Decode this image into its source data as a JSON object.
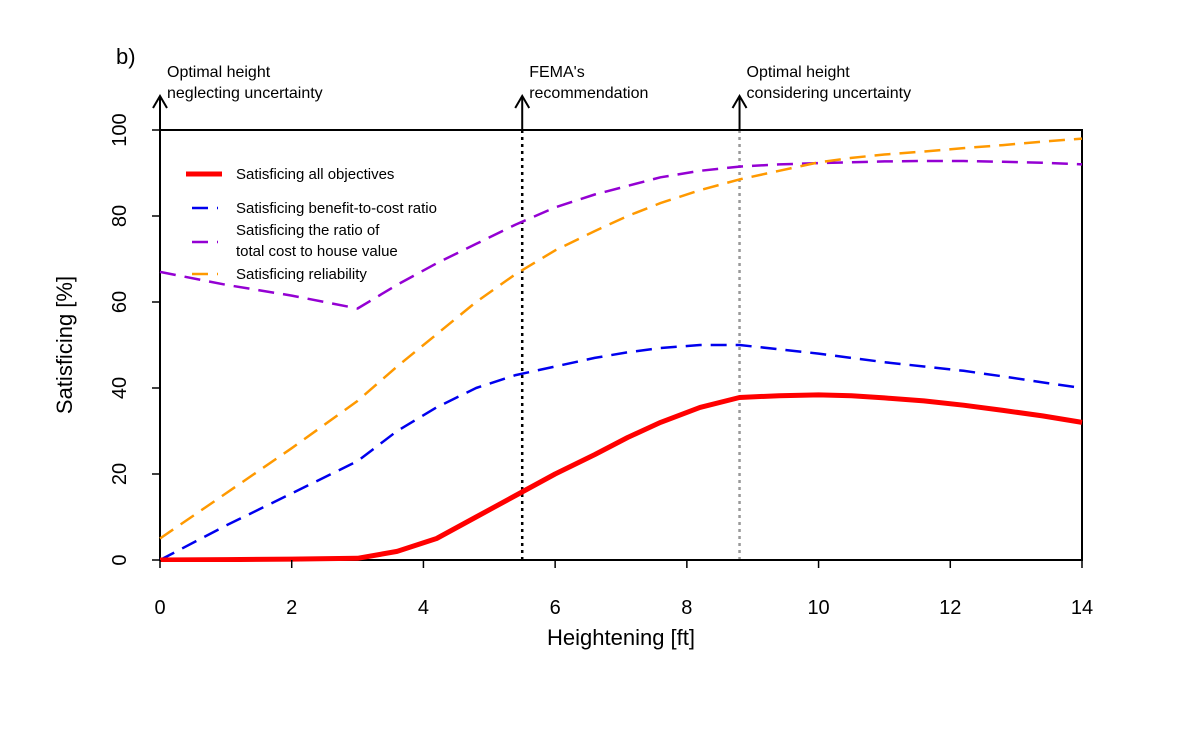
{
  "panel_label": "b)",
  "chart_data": {
    "type": "line",
    "xlabel": "Heightening [ft]",
    "ylabel": "Satisficing [%]",
    "xlim": [
      0,
      14
    ],
    "ylim": [
      0,
      100
    ],
    "xticks": [
      0,
      2,
      4,
      6,
      8,
      10,
      12,
      14
    ],
    "yticks": [
      0,
      20,
      40,
      60,
      80,
      100
    ],
    "grid": false,
    "legend_position": "top-left",
    "series": [
      {
        "name": "Satisficing all objectives",
        "color": "#ff0000",
        "style": "solid-thick",
        "x": [
          0,
          1,
          2,
          3,
          3.6,
          4.2,
          4.8,
          5.4,
          6,
          6.6,
          7.1,
          7.6,
          8.2,
          8.8,
          9.4,
          10,
          10.5,
          11,
          11.6,
          12.2,
          12.8,
          13.4,
          14
        ],
        "y": [
          0,
          0.1,
          0.2,
          0.4,
          2,
          5,
          10,
          15,
          20,
          24.5,
          28.5,
          32,
          35.5,
          37.8,
          38.2,
          38.4,
          38.2,
          37.7,
          37,
          36,
          34.8,
          33.5,
          32
        ]
      },
      {
        "name": "Satisficing benefit-to-cost ratio",
        "color": "#0000ee",
        "style": "dashed",
        "x": [
          0,
          1,
          2,
          3,
          3.6,
          4.2,
          4.8,
          5.4,
          6,
          6.6,
          7.1,
          7.6,
          8.2,
          8.8,
          9.4,
          10,
          10.5,
          11,
          11.6,
          12.2,
          12.8,
          13.4,
          14
        ],
        "y": [
          0,
          8,
          15.5,
          23,
          30,
          35.5,
          40,
          43,
          45,
          47,
          48.3,
          49.3,
          50,
          50,
          49,
          48,
          47,
          46,
          45,
          44,
          42.7,
          41.3,
          40
        ]
      },
      {
        "name": "Satisficing the ratio of total cost to house value",
        "legend_lines": [
          "Satisficing the ratio of",
          "total cost to house value"
        ],
        "color": "#9400d3",
        "style": "dashed",
        "x": [
          0,
          1,
          2,
          3,
          3.6,
          4.2,
          4.8,
          5.4,
          6,
          6.6,
          7.1,
          7.6,
          8.2,
          8.8,
          9.4,
          10,
          10.5,
          11,
          11.6,
          12.2,
          12.8,
          13.4,
          14
        ],
        "y": [
          67,
          64,
          61.5,
          58.5,
          64,
          69,
          73.5,
          78,
          82,
          85,
          87,
          89,
          90.5,
          91.5,
          92,
          92.3,
          92.5,
          92.7,
          92.8,
          92.8,
          92.6,
          92.4,
          92
        ]
      },
      {
        "name": "Satisficing reliability",
        "color": "#ff9900",
        "style": "dashed",
        "x": [
          0,
          1,
          2,
          3,
          3.6,
          4.2,
          4.8,
          5.4,
          6,
          6.6,
          7.1,
          7.6,
          8.2,
          8.8,
          9.4,
          10,
          10.5,
          11,
          11.6,
          12.2,
          12.8,
          13.4,
          14
        ],
        "y": [
          5,
          15.5,
          26,
          37,
          45,
          52.5,
          60,
          66.5,
          72,
          76.5,
          80,
          83,
          86,
          88.5,
          90.5,
          92.5,
          93.5,
          94.3,
          95,
          95.8,
          96.5,
          97.3,
          98
        ]
      }
    ],
    "annotations": [
      {
        "x": 0,
        "lines": [
          "Optimal height",
          "neglecting uncertainty"
        ],
        "line_color": "#000000",
        "line_style": "solid"
      },
      {
        "x": 5.5,
        "lines": [
          "FEMA's",
          "recommendation"
        ],
        "line_color": "#000000",
        "line_style": "dotted"
      },
      {
        "x": 8.8,
        "lines": [
          "Optimal height",
          "considering uncertainty"
        ],
        "line_color": "#999999",
        "line_style": "dotted"
      }
    ]
  }
}
